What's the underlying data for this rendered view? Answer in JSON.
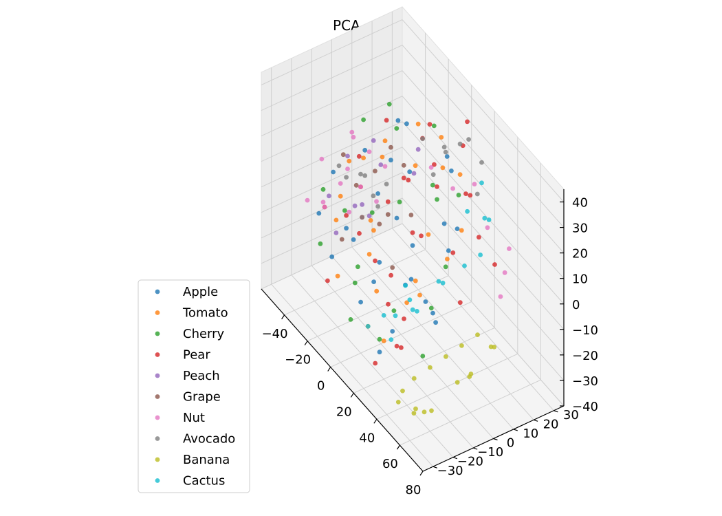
{
  "chart_data": {
    "type": "scatter",
    "projection": "3d",
    "title": "PCA = 3",
    "xlabel": "",
    "ylabel": "",
    "zlabel": "",
    "xlim": [
      -60,
      80
    ],
    "ylim": [
      -35,
      35
    ],
    "zlim": [
      -40,
      45
    ],
    "x_ticks": [
      "−40",
      "−20",
      "0",
      "20",
      "40",
      "60",
      "80"
    ],
    "y_ticks": [
      "−30",
      "−20",
      "−10",
      "0",
      "10",
      "20",
      "30"
    ],
    "z_ticks": [
      "−40",
      "−30",
      "−20",
      "−10",
      "0",
      "10",
      "20",
      "30",
      "40"
    ],
    "grid": true,
    "legend_position": "lower-left",
    "series": [
      {
        "name": "Apple",
        "color": "#1f77b4",
        "points": [
          [
            -50,
            -5,
            0
          ],
          [
            -40,
            5,
            10
          ],
          [
            -30,
            -10,
            -10
          ],
          [
            -20,
            0,
            5
          ],
          [
            -10,
            10,
            15
          ],
          [
            0,
            -20,
            -20
          ],
          [
            10,
            0,
            0
          ],
          [
            20,
            10,
            10
          ],
          [
            30,
            -5,
            -10
          ],
          [
            40,
            5,
            20
          ],
          [
            -35,
            15,
            5
          ],
          [
            -15,
            -15,
            -5
          ],
          [
            5,
            20,
            25
          ],
          [
            25,
            -25,
            -25
          ],
          [
            -25,
            -20,
            -15
          ],
          [
            15,
            15,
            -5
          ],
          [
            -5,
            5,
            -25
          ],
          [
            35,
            -15,
            5
          ],
          [
            -45,
            -15,
            -10
          ],
          [
            0,
            25,
            15
          ],
          [
            10,
            -10,
            -30
          ],
          [
            -20,
            10,
            30
          ],
          [
            30,
            0,
            -20
          ],
          [
            20,
            -25,
            0
          ],
          [
            -10,
            -5,
            -15
          ],
          [
            45,
            -10,
            -5
          ],
          [
            -30,
            20,
            20
          ],
          [
            5,
            -5,
            10
          ]
        ]
      },
      {
        "name": "Tomato",
        "color": "#ff7f0e",
        "points": [
          [
            -45,
            0,
            5
          ],
          [
            -35,
            -10,
            0
          ],
          [
            -25,
            5,
            15
          ],
          [
            -15,
            -5,
            -5
          ],
          [
            -5,
            10,
            20
          ],
          [
            5,
            -15,
            -15
          ],
          [
            15,
            5,
            5
          ],
          [
            25,
            -5,
            -10
          ],
          [
            35,
            10,
            15
          ],
          [
            -40,
            15,
            10
          ],
          [
            -20,
            -20,
            -20
          ],
          [
            0,
            20,
            30
          ],
          [
            20,
            -20,
            -25
          ],
          [
            -30,
            -15,
            -5
          ],
          [
            10,
            15,
            25
          ],
          [
            -10,
            -10,
            -10
          ],
          [
            30,
            -10,
            0
          ],
          [
            -50,
            10,
            0
          ],
          [
            40,
            0,
            10
          ],
          [
            -20,
            20,
            25
          ],
          [
            15,
            -25,
            -20
          ],
          [
            5,
            0,
            -25
          ],
          [
            -35,
            5,
            -15
          ],
          [
            25,
            15,
            30
          ]
        ]
      },
      {
        "name": "Cherry",
        "color": "#2ca02c",
        "points": [
          [
            -50,
            10,
            15
          ],
          [
            -40,
            -5,
            -10
          ],
          [
            -30,
            15,
            20
          ],
          [
            -20,
            -10,
            -20
          ],
          [
            -10,
            5,
            5
          ],
          [
            0,
            -25,
            -25
          ],
          [
            10,
            10,
            20
          ],
          [
            20,
            -15,
            -15
          ],
          [
            30,
            5,
            0
          ],
          [
            -45,
            20,
            20
          ],
          [
            -25,
            0,
            -5
          ],
          [
            -5,
            -20,
            -15
          ],
          [
            15,
            20,
            15
          ],
          [
            35,
            -5,
            -10
          ],
          [
            -35,
            -20,
            -15
          ],
          [
            25,
            -25,
            -20
          ],
          [
            5,
            15,
            10
          ],
          [
            -15,
            25,
            25
          ],
          [
            45,
            -15,
            -20
          ],
          [
            -50,
            -10,
            -5
          ]
        ]
      },
      {
        "name": "Pear",
        "color": "#d62728",
        "points": [
          [
            -45,
            5,
            5
          ],
          [
            -35,
            0,
            0
          ],
          [
            -25,
            -5,
            -5
          ],
          [
            -15,
            10,
            10
          ],
          [
            -5,
            -10,
            -10
          ],
          [
            5,
            15,
            15
          ],
          [
            15,
            -15,
            -15
          ],
          [
            25,
            20,
            20
          ],
          [
            35,
            -20,
            -20
          ],
          [
            45,
            0,
            15
          ],
          [
            -40,
            -15,
            -5
          ],
          [
            -30,
            10,
            25
          ],
          [
            -20,
            -25,
            -20
          ],
          [
            -10,
            20,
            30
          ],
          [
            0,
            -5,
            -15
          ],
          [
            10,
            25,
            30
          ],
          [
            20,
            -10,
            -20
          ],
          [
            30,
            15,
            25
          ],
          [
            40,
            -25,
            -15
          ],
          [
            50,
            10,
            20
          ],
          [
            -20,
            5,
            0
          ],
          [
            -30,
            -10,
            -5
          ],
          [
            0,
            10,
            -5
          ],
          [
            10,
            0,
            5
          ],
          [
            -10,
            -15,
            0
          ],
          [
            20,
            5,
            35
          ],
          [
            30,
            -30,
            -25
          ],
          [
            5,
            30,
            35
          ],
          [
            -25,
            25,
            15
          ],
          [
            60,
            -5,
            5
          ],
          [
            55,
            15,
            10
          ],
          [
            15,
            -5,
            30
          ]
        ]
      },
      {
        "name": "Peach",
        "color": "#9467bd",
        "points": [
          [
            -55,
            5,
            0
          ],
          [
            -45,
            -10,
            -5
          ],
          [
            -35,
            10,
            5
          ],
          [
            -25,
            -5,
            0
          ],
          [
            -15,
            15,
            10
          ],
          [
            -50,
            15,
            5
          ],
          [
            -40,
            0,
            -10
          ],
          [
            -30,
            -15,
            -10
          ],
          [
            -20,
            20,
            15
          ],
          [
            -10,
            -10,
            5
          ]
        ]
      },
      {
        "name": "Grape",
        "color": "#8c564b",
        "points": [
          [
            -50,
            0,
            5
          ],
          [
            -40,
            10,
            0
          ],
          [
            -30,
            -5,
            5
          ],
          [
            -20,
            5,
            -5
          ],
          [
            -10,
            -5,
            0
          ],
          [
            0,
            5,
            5
          ],
          [
            10,
            -10,
            -5
          ],
          [
            -35,
            15,
            10
          ],
          [
            -25,
            -15,
            -10
          ],
          [
            -15,
            10,
            15
          ]
        ]
      },
      {
        "name": "Nut",
        "color": "#e377c2",
        "points": [
          [
            -60,
            -5,
            0
          ],
          [
            -55,
            5,
            -5
          ],
          [
            -50,
            -10,
            -10
          ],
          [
            -45,
            10,
            5
          ],
          [
            -40,
            -15,
            -5
          ],
          [
            -35,
            0,
            0
          ],
          [
            -30,
            5,
            -5
          ],
          [
            -60,
            10,
            5
          ],
          [
            -55,
            -15,
            -10
          ],
          [
            -45,
            0,
            -15
          ],
          [
            -40,
            15,
            0
          ],
          [
            -50,
            5,
            10
          ],
          [
            -35,
            -10,
            5
          ],
          [
            0,
            15,
            20
          ],
          [
            10,
            20,
            15
          ],
          [
            40,
            20,
            15
          ],
          [
            50,
            25,
            10
          ],
          [
            55,
            20,
            5
          ],
          [
            60,
            15,
            0
          ],
          [
            20,
            25,
            20
          ]
        ]
      },
      {
        "name": "Avocado",
        "color": "#7f7f7f",
        "points": [
          [
            -40,
            5,
            0
          ],
          [
            -35,
            0,
            5
          ],
          [
            -30,
            10,
            0
          ],
          [
            -25,
            -5,
            -5
          ],
          [
            -45,
            -5,
            5
          ],
          [
            -20,
            0,
            0
          ],
          [
            -30,
            -10,
            10
          ],
          [
            -38,
            8,
            -8
          ],
          [
            20,
            10,
            40
          ],
          [
            30,
            5,
            45
          ],
          [
            25,
            15,
            42
          ],
          [
            35,
            20,
            38
          ],
          [
            15,
            25,
            35
          ],
          [
            40,
            15,
            30
          ],
          [
            10,
            5,
            40
          ],
          [
            28,
            0,
            37
          ]
        ]
      },
      {
        "name": "Banana",
        "color": "#bcbd22",
        "points": [
          [
            55,
            -25,
            -20
          ],
          [
            60,
            -20,
            -15
          ],
          [
            65,
            -15,
            -10
          ],
          [
            70,
            -10,
            -5
          ],
          [
            75,
            -5,
            0
          ],
          [
            70,
            -25,
            -25
          ],
          [
            65,
            -30,
            -25
          ],
          [
            60,
            -28,
            -30
          ],
          [
            75,
            -15,
            -15
          ],
          [
            78,
            0,
            -5
          ],
          [
            72,
            5,
            -10
          ],
          [
            68,
            -5,
            -20
          ],
          [
            50,
            -30,
            -30
          ],
          [
            55,
            -20,
            -35
          ],
          [
            45,
            -25,
            -30
          ],
          [
            78,
            -10,
            -12
          ]
        ]
      },
      {
        "name": "Cactus",
        "color": "#17becf",
        "points": [
          [
            30,
            -20,
            -10
          ],
          [
            40,
            -15,
            -5
          ],
          [
            35,
            -25,
            -15
          ],
          [
            45,
            -20,
            0
          ],
          [
            50,
            -10,
            10
          ],
          [
            55,
            0,
            15
          ],
          [
            60,
            5,
            20
          ],
          [
            40,
            10,
            25
          ],
          [
            35,
            20,
            30
          ],
          [
            25,
            -10,
            -10
          ],
          [
            20,
            -20,
            -15
          ],
          [
            50,
            15,
            25
          ],
          [
            15,
            -25,
            -20
          ],
          [
            55,
            10,
            30
          ],
          [
            30,
            -15,
            0
          ],
          [
            45,
            -5,
            5
          ]
        ]
      }
    ]
  }
}
